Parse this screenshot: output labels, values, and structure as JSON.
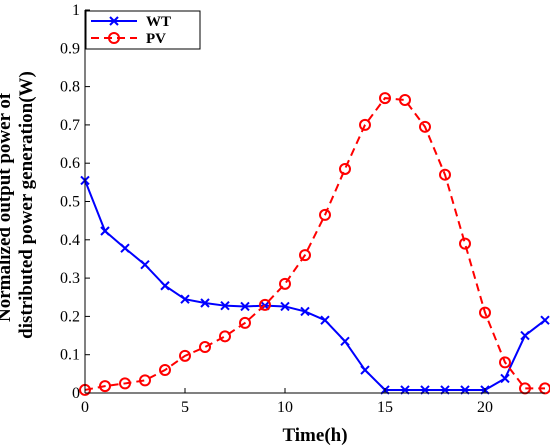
{
  "chart_data": {
    "type": "line",
    "xlabel": "Time(h)",
    "ylabel_lines": [
      "Normalized output power of",
      "distributed power generation(W)"
    ],
    "xlim": [
      0,
      23
    ],
    "ylim": [
      0,
      1
    ],
    "xticks": [
      0,
      5,
      10,
      15,
      20
    ],
    "yticks": [
      0,
      0.1,
      0.2,
      0.3,
      0.4,
      0.5,
      0.6,
      0.7,
      0.8,
      0.9,
      1
    ],
    "x": [
      0,
      1,
      2,
      3,
      4,
      5,
      6,
      7,
      8,
      9,
      10,
      11,
      12,
      13,
      14,
      15,
      16,
      17,
      18,
      19,
      20,
      21,
      22,
      23
    ],
    "legend_position": "top-left",
    "grid": false,
    "series": [
      {
        "name": "WT",
        "color": "#0000ff",
        "line_style": "solid",
        "marker": "x",
        "values": [
          0.555,
          0.423,
          0.378,
          0.335,
          0.28,
          0.245,
          0.235,
          0.228,
          0.226,
          0.228,
          0.226,
          0.213,
          0.19,
          0.135,
          0.06,
          0.008,
          0.008,
          0.008,
          0.008,
          0.008,
          0.008,
          0.038,
          0.15,
          0.19
        ]
      },
      {
        "name": "PV",
        "color": "#ff0000",
        "line_style": "dashed",
        "marker": "o",
        "values": [
          0.008,
          0.018,
          0.025,
          0.033,
          0.06,
          0.097,
          0.12,
          0.148,
          0.183,
          0.23,
          0.285,
          0.36,
          0.465,
          0.585,
          0.7,
          0.77,
          0.765,
          0.695,
          0.57,
          0.39,
          0.21,
          0.08,
          0.012,
          0.012
        ]
      }
    ]
  }
}
